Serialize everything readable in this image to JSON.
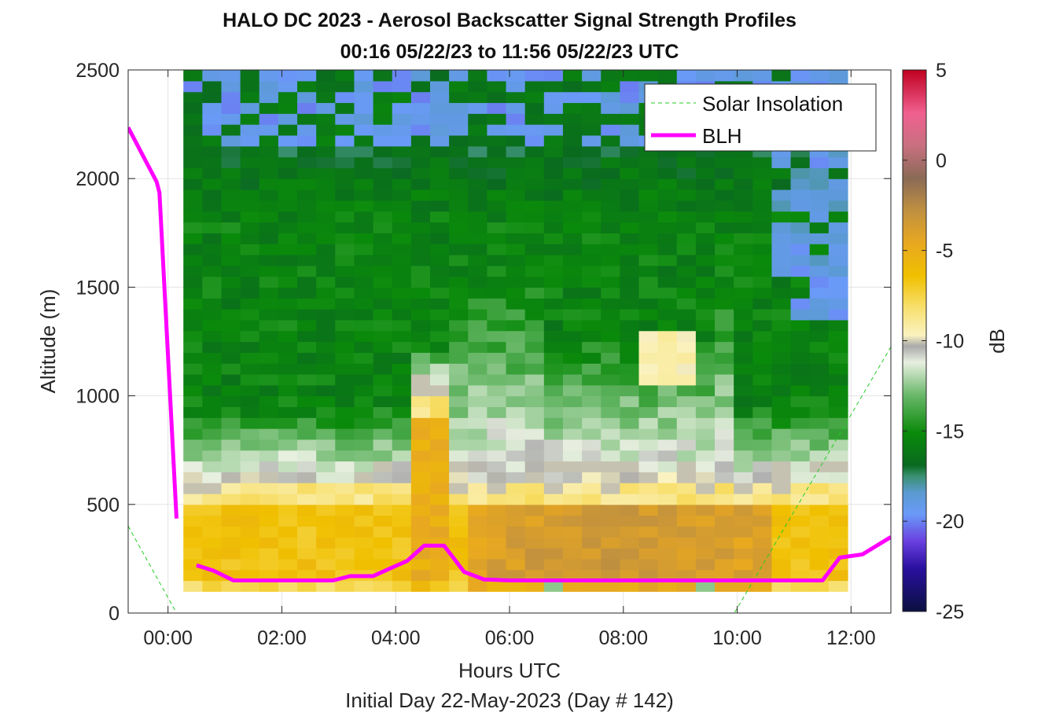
{
  "chart_data": {
    "type": "heatmap",
    "title": "HALO DC 2023 - Aerosol Backscatter Signal Strength Profiles",
    "subtitle": "00:16 05/22/23 to 11:56 05/22/23  UTC",
    "xlabel": "Hours UTC",
    "footer": "Initial Day 22-May-2023 (Day # 142)",
    "ylabel": "Altitude (m)",
    "colorbar_label": "dB",
    "xlim": [
      -0.7,
      12.7
    ],
    "ylim": [
      0,
      2500
    ],
    "clim": [
      -25,
      5
    ],
    "x_ticks": [
      0,
      2,
      4,
      6,
      8,
      10,
      12
    ],
    "x_tick_labels": [
      "00:00",
      "02:00",
      "04:00",
      "06:00",
      "08:00",
      "10:00",
      "12:00"
    ],
    "y_ticks": [
      0,
      500,
      1000,
      1500,
      2000,
      2500
    ],
    "y_tick_labels": [
      "0",
      "500",
      "1000",
      "1500",
      "2000",
      "2500"
    ],
    "colorbar_ticks": [
      5,
      0,
      -5,
      -10,
      -15,
      -20,
      -25
    ],
    "colorbar_tick_labels": [
      "5",
      "0",
      "-5",
      "-10",
      "-15",
      "-20",
      "-25"
    ],
    "grid": true,
    "legend_position": "top-right",
    "heatmap": {
      "x_start": 0.27,
      "x_end": 11.94,
      "y_start": 100,
      "y_end": 2500,
      "nx": 35,
      "ny": 48
    },
    "series": [
      {
        "name": "Solar Insolation",
        "style": "dashed",
        "color": "#22cc22",
        "x": [
          -0.7,
          0.15,
          9.95,
          12.7
        ],
        "y": [
          400,
          0,
          0,
          1225
        ]
      },
      {
        "name": "BLH",
        "style": "solid",
        "color": "#ff00ff",
        "segments": [
          {
            "x": [
              -0.7,
              -0.2,
              -0.15,
              0.15
            ],
            "y": [
              2235,
              1985,
              1935,
              435
            ]
          },
          {
            "x": [
              0.5,
              0.8,
              1.15,
              1.5,
              2.0,
              2.5,
              2.9,
              3.2,
              3.6,
              3.9,
              4.2,
              4.5,
              4.85,
              5.2,
              5.55,
              6.0,
              7.0,
              8.0,
              9.0,
              10.0,
              11.0,
              11.5,
              11.8,
              12.2,
              12.7
            ],
            "y": [
              220,
              195,
              150,
              150,
              150,
              150,
              150,
              170,
              170,
              205,
              240,
              310,
              310,
              190,
              155,
              150,
              150,
              150,
              150,
              150,
              150,
              150,
              255,
              270,
              350
            ]
          }
        ]
      }
    ]
  }
}
